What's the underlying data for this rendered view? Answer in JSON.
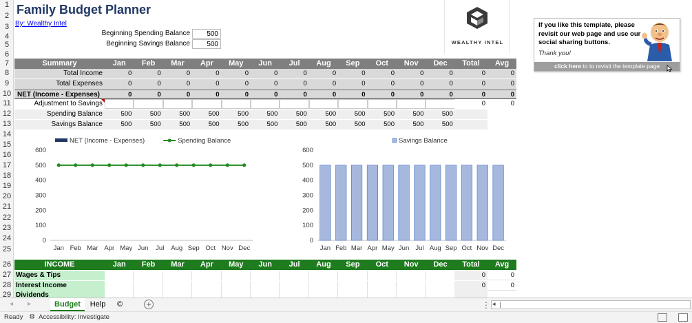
{
  "title": "Family Budget Planner",
  "byline": "By: Wealthy Intel",
  "balances": {
    "spending_label": "Beginning Spending Balance",
    "spending_value": "500",
    "savings_label": "Beginning Savings Balance",
    "savings_value": "500"
  },
  "logo": {
    "text": "WEALTHY INTEL"
  },
  "promo": {
    "text": "If you like this template, please revisit our web page and use our social sharing buttons.",
    "thanks": "Thank you!",
    "cta_bold": "click here",
    "cta_rest": " to to revisit the template page"
  },
  "months": [
    "Jan",
    "Feb",
    "Mar",
    "Apr",
    "May",
    "Jun",
    "Jul",
    "Aug",
    "Sep",
    "Oct",
    "Nov",
    "Dec"
  ],
  "summary": {
    "header": "Summary",
    "total_label": "Total",
    "avg_label": "Avg",
    "rows": [
      {
        "label": "Total Income",
        "values": [
          "0",
          "0",
          "0",
          "0",
          "0",
          "0",
          "0",
          "0",
          "0",
          "0",
          "0",
          "0"
        ],
        "total": "0",
        "avg": "0"
      },
      {
        "label": "Total Expenses",
        "values": [
          "0",
          "0",
          "0",
          "0",
          "0",
          "0",
          "0",
          "0",
          "0",
          "0",
          "0",
          "0"
        ],
        "total": "0",
        "avg": "0"
      },
      {
        "label": "NET (Income - Expenses)",
        "values": [
          "0",
          "0",
          "0",
          "0",
          "0",
          "0",
          "0",
          "0",
          "0",
          "0",
          "0",
          "0"
        ],
        "total": "0",
        "avg": "0"
      },
      {
        "label": "Adjustment to Savings",
        "values": [
          "",
          "",
          "",
          "",
          "",
          "",
          "",
          "",
          "",
          "",
          "",
          ""
        ],
        "total": "0",
        "avg": "0"
      },
      {
        "label": "Spending Balance",
        "values": [
          "500",
          "500",
          "500",
          "500",
          "500",
          "500",
          "500",
          "500",
          "500",
          "500",
          "500",
          "500"
        ],
        "total": "",
        "avg": ""
      },
      {
        "label": "Savings Balance",
        "values": [
          "500",
          "500",
          "500",
          "500",
          "500",
          "500",
          "500",
          "500",
          "500",
          "500",
          "500",
          "500"
        ],
        "total": "",
        "avg": ""
      }
    ]
  },
  "income": {
    "header": "INCOME",
    "total_label": "Total",
    "avg_label": "Avg",
    "rows": [
      {
        "label": "Wages & Tips",
        "total": "0",
        "avg": "0"
      },
      {
        "label": "Interest Income",
        "total": "0",
        "avg": "0"
      },
      {
        "label": "Dividends",
        "total": "",
        "avg": ""
      }
    ]
  },
  "row_numbers": [
    "1",
    "2",
    "3",
    "4",
    "5",
    "6",
    "7",
    "8",
    "9",
    "10",
    "11",
    "12",
    "13",
    "14",
    "15",
    "16",
    "17",
    "18",
    "19",
    "20",
    "21",
    "22",
    "23",
    "24",
    "25",
    "26",
    "27",
    "28",
    "29"
  ],
  "chart_data": [
    {
      "type": "line",
      "title": "",
      "categories": [
        "Jan",
        "Feb",
        "Mar",
        "Apr",
        "May",
        "Jun",
        "Jul",
        "Aug",
        "Sep",
        "Oct",
        "Nov",
        "Dec"
      ],
      "series": [
        {
          "name": "NET (Income - Expenses)",
          "kind": "bar",
          "color": "#1f3864",
          "values": [
            0,
            0,
            0,
            0,
            0,
            0,
            0,
            0,
            0,
            0,
            0,
            0
          ]
        },
        {
          "name": "Spending Balance",
          "kind": "line",
          "color": "#228b22",
          "values": [
            500,
            500,
            500,
            500,
            500,
            500,
            500,
            500,
            500,
            500,
            500,
            500
          ]
        }
      ],
      "yticks": [
        "0",
        "100",
        "200",
        "300",
        "400",
        "500",
        "600"
      ],
      "ylim": [
        0,
        600
      ],
      "legend": "top"
    },
    {
      "type": "bar",
      "title": "",
      "categories": [
        "Jan",
        "Feb",
        "Mar",
        "Apr",
        "May",
        "Jun",
        "Jul",
        "Aug",
        "Sep",
        "Oct",
        "Nov",
        "Dec"
      ],
      "series": [
        {
          "name": "Savings Balance",
          "color": "#a6b8de",
          "values": [
            500,
            500,
            500,
            500,
            500,
            500,
            500,
            500,
            500,
            500,
            500,
            500
          ]
        }
      ],
      "yticks": [
        "0",
        "100",
        "200",
        "300",
        "400",
        "500",
        "600"
      ],
      "ylim": [
        0,
        600
      ],
      "legend": "top"
    }
  ],
  "tabs": [
    {
      "label": "Budget",
      "active": true
    },
    {
      "label": "Help",
      "active": false
    },
    {
      "label": "©",
      "active": false
    }
  ],
  "status": {
    "ready": "Ready",
    "accessibility": "Accessibility: Investigate"
  }
}
